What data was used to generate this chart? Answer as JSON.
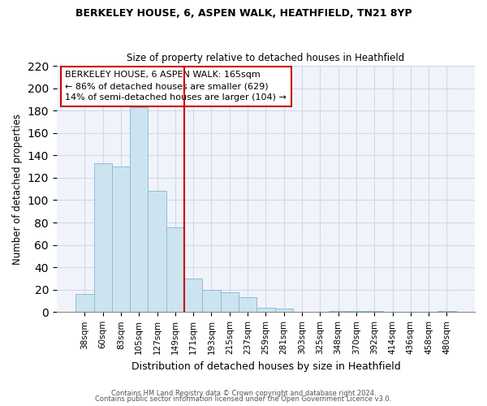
{
  "title1": "BERKELEY HOUSE, 6, ASPEN WALK, HEATHFIELD, TN21 8YP",
  "title2": "Size of property relative to detached houses in Heathfield",
  "xlabel": "Distribution of detached houses by size in Heathfield",
  "ylabel": "Number of detached properties",
  "categories": [
    "38sqm",
    "60sqm",
    "83sqm",
    "105sqm",
    "127sqm",
    "149sqm",
    "171sqm",
    "193sqm",
    "215sqm",
    "237sqm",
    "259sqm",
    "281sqm",
    "303sqm",
    "325sqm",
    "348sqm",
    "370sqm",
    "392sqm",
    "414sqm",
    "436sqm",
    "458sqm",
    "480sqm"
  ],
  "values": [
    16,
    133,
    130,
    183,
    108,
    76,
    30,
    20,
    18,
    13,
    4,
    3,
    0,
    0,
    1,
    1,
    1,
    0,
    0,
    0,
    1
  ],
  "bar_color": "#cce4f0",
  "bar_edge_color": "#8cbdd8",
  "vline_color": "#cc0000",
  "vline_pos": 5.5,
  "annotation_line1": "BERKELEY HOUSE, 6 ASPEN WALK: 165sqm",
  "annotation_line2": "← 86% of detached houses are smaller (629)",
  "annotation_line3": "14% of semi-detached houses are larger (104) →",
  "ylim": [
    0,
    220
  ],
  "yticks": [
    0,
    20,
    40,
    60,
    80,
    100,
    120,
    140,
    160,
    180,
    200,
    220
  ],
  "footer1": "Contains HM Land Registry data © Crown copyright and database right 2024.",
  "footer2": "Contains public sector information licensed under the Open Government Licence v3.0."
}
